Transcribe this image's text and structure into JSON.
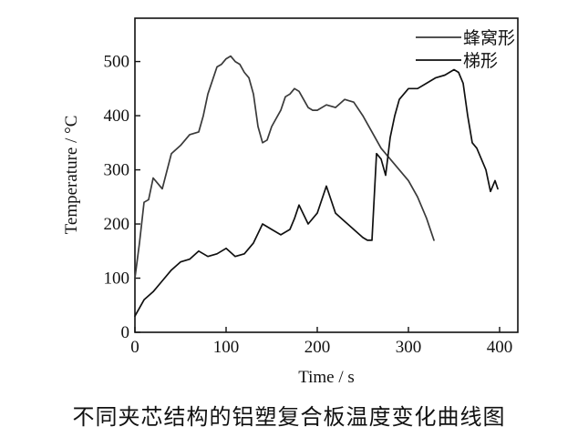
{
  "caption": "不同夹芯结构的铝塑复合板温度变化曲线图",
  "chart_data": {
    "type": "line",
    "xlabel": "Time / s",
    "ylabel": "Temperature / °C",
    "xlim": [
      0,
      420
    ],
    "ylim": [
      0,
      580
    ],
    "xticks": [
      0,
      100,
      200,
      300,
      400
    ],
    "yticks": [
      0,
      100,
      200,
      300,
      400,
      500
    ],
    "grid": false,
    "legend_position": "top-right",
    "series": [
      {
        "name": "蜂窝形",
        "color": "#3a3a3a",
        "x": [
          0,
          5,
          10,
          15,
          20,
          25,
          30,
          40,
          50,
          60,
          70,
          75,
          80,
          90,
          95,
          100,
          105,
          110,
          115,
          120,
          125,
          130,
          135,
          140,
          145,
          150,
          155,
          160,
          165,
          170,
          175,
          180,
          185,
          190,
          195,
          200,
          210,
          220,
          230,
          240,
          250,
          260,
          270,
          280,
          290,
          300,
          310,
          320,
          328
        ],
        "y": [
          100,
          165,
          240,
          245,
          285,
          275,
          265,
          330,
          345,
          365,
          370,
          400,
          440,
          490,
          495,
          505,
          510,
          500,
          495,
          480,
          470,
          440,
          380,
          350,
          355,
          380,
          395,
          410,
          435,
          440,
          450,
          445,
          430,
          415,
          410,
          410,
          420,
          415,
          430,
          425,
          400,
          370,
          340,
          320,
          300,
          280,
          250,
          210,
          170
        ]
      },
      {
        "name": "梯形",
        "color": "#101010",
        "x": [
          0,
          10,
          20,
          30,
          40,
          50,
          60,
          70,
          80,
          90,
          100,
          110,
          120,
          130,
          140,
          150,
          160,
          170,
          175,
          180,
          190,
          200,
          210,
          220,
          230,
          240,
          250,
          255,
          260,
          265,
          270,
          275,
          280,
          285,
          290,
          300,
          310,
          320,
          330,
          340,
          350,
          355,
          360,
          365,
          370,
          375,
          380,
          385,
          390,
          395,
          398
        ],
        "y": [
          30,
          60,
          75,
          95,
          115,
          130,
          135,
          150,
          140,
          145,
          155,
          140,
          145,
          165,
          200,
          190,
          180,
          190,
          210,
          235,
          200,
          220,
          270,
          220,
          205,
          190,
          175,
          170,
          170,
          330,
          320,
          290,
          360,
          400,
          430,
          450,
          450,
          460,
          470,
          475,
          485,
          480,
          460,
          400,
          350,
          340,
          320,
          300,
          260,
          280,
          265
        ]
      }
    ]
  }
}
